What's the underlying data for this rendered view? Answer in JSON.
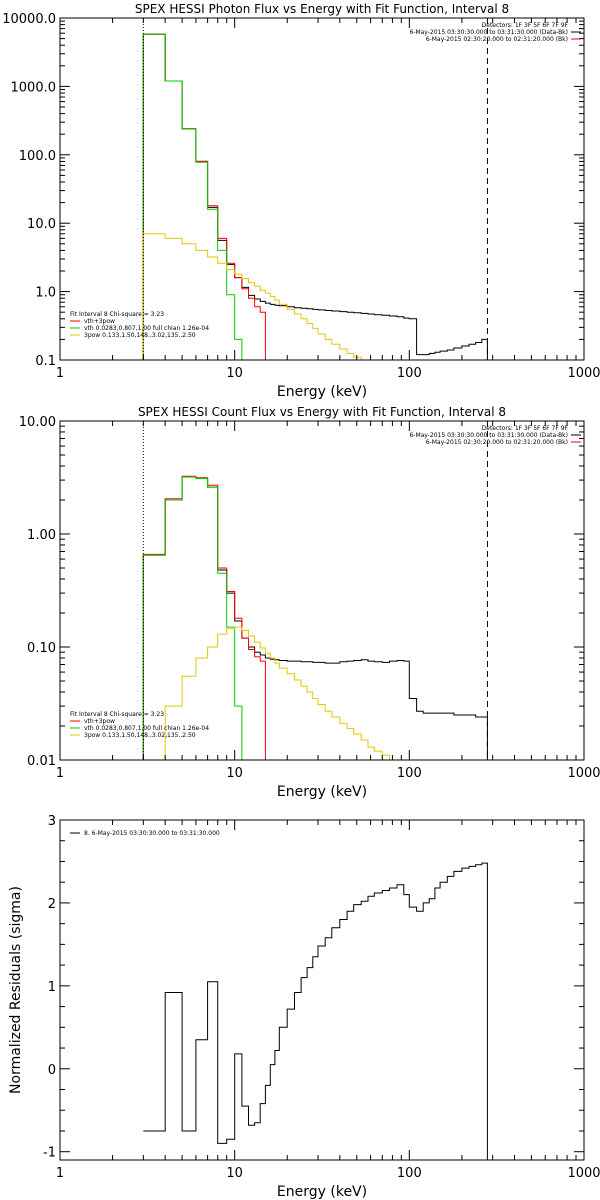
{
  "chart_data": [
    {
      "type": "line",
      "title": "SPEX HESSI Photon Flux vs Energy with Fit Function, Interval 8",
      "xlabel": "Energy (keV)",
      "ylabel": "",
      "xscale": "log",
      "yscale": "log",
      "xlim": [
        1,
        1000
      ],
      "ylim": [
        0.1,
        10000
      ],
      "x_ticks": [
        "1",
        "10",
        "100",
        "1000"
      ],
      "y_ticks": [
        "0.1",
        "1.0",
        "10.0",
        "100.0",
        "1000.0",
        "10000.0"
      ],
      "vlines": {
        "dotted": 3.0,
        "dashed": 280
      },
      "header_lines": [
        "Detectors: 1F 3F 5F 6F 7F 9F",
        "6-May-2015 03:30:30.000 to 03:31:30.000 (Data-Bk)",
        "6-May-2015 02:30:20.000 to 02:31:20.000 (Bk)"
      ],
      "header_colors": [
        "#000000",
        "#000000",
        "#ff0000"
      ],
      "legend_lines": [
        "Fit Interval 8   Chi-square = 3.23",
        "vth+3pow",
        "vth 0.0283,0.807,1.00  full chian 1.26e-04",
        "3pow 0.133,1.50,148.,3.02,135.,2.50"
      ],
      "legend_colors": [
        "#000000",
        "#ff0000",
        "#00cc00",
        "#e6c700"
      ],
      "series": [
        {
          "color": "#000000",
          "edges": [
            3,
            4,
            5,
            6,
            7,
            8,
            9,
            10,
            11,
            12,
            13,
            14,
            15,
            16,
            17,
            18,
            20,
            22,
            24,
            26,
            28,
            30,
            33,
            36,
            40,
            44,
            48,
            53,
            58,
            63,
            70,
            77,
            85,
            93,
            100,
            110,
            120,
            130,
            140,
            150,
            165,
            180,
            200,
            220,
            240,
            260,
            280
          ],
          "values": [
            5800,
            1200,
            240,
            80,
            17,
            5.6,
            2.5,
            1.6,
            1.15,
            0.88,
            0.78,
            0.72,
            0.68,
            0.65,
            0.63,
            0.62,
            0.6,
            0.58,
            0.57,
            0.56,
            0.55,
            0.54,
            0.53,
            0.52,
            0.51,
            0.5,
            0.49,
            0.48,
            0.47,
            0.46,
            0.45,
            0.44,
            0.43,
            0.41,
            0.4,
            0.12,
            0.12,
            0.125,
            0.13,
            0.135,
            0.14,
            0.15,
            0.16,
            0.17,
            0.18,
            0.2
          ]
        },
        {
          "color": "#ff0000",
          "edges": [
            3,
            4,
            5,
            6,
            7,
            8,
            9,
            10,
            11,
            12,
            13,
            14,
            15
          ],
          "values": [
            5800,
            1200,
            240,
            80,
            18,
            6,
            2.6,
            1.6,
            1.1,
            0.8,
            0.6,
            0.5
          ]
        },
        {
          "color": "#00cc00",
          "edges": [
            3,
            4,
            5,
            6,
            7,
            8,
            9,
            10,
            11,
            12
          ],
          "values": [
            5800,
            1200,
            240,
            78,
            16,
            4,
            0.9,
            0.2,
            0.05
          ]
        },
        {
          "color": "#e6c700",
          "edges": [
            3,
            4,
            5,
            6,
            7,
            8,
            9,
            10,
            11,
            12,
            13,
            14,
            15,
            16,
            17,
            18,
            20,
            22,
            24,
            26,
            28,
            30,
            33,
            36,
            40,
            44,
            48,
            53,
            58,
            63,
            70
          ],
          "values": [
            7,
            6,
            5,
            4,
            3.2,
            2.6,
            2.1,
            1.8,
            1.55,
            1.35,
            1.2,
            1.05,
            0.95,
            0.85,
            0.75,
            0.65,
            0.55,
            0.47,
            0.4,
            0.34,
            0.29,
            0.24,
            0.2,
            0.17,
            0.145,
            0.125,
            0.11,
            0.1,
            0.09,
            0.085
          ]
        }
      ]
    },
    {
      "type": "line",
      "title": "SPEX HESSI Count Flux vs Energy with Fit Function, Interval 8",
      "xlabel": "Energy (keV)",
      "ylabel": "",
      "xscale": "log",
      "yscale": "log",
      "xlim": [
        1,
        1000
      ],
      "ylim": [
        0.01,
        10
      ],
      "x_ticks": [
        "1",
        "10",
        "100",
        "1000"
      ],
      "y_ticks": [
        "0.01",
        "0.10",
        "1.00",
        "10.00"
      ],
      "vlines": {
        "dotted": 3.0,
        "dashed": 280
      },
      "header_lines": [
        "Detectors: 1F 3F 5F 6F 7F 9F",
        "6-May-2015 03:30:30.000 to 03:31:30.000 (Data-Bk)",
        "6-May-2015 02:30:20.000 to 02:31:20.000 (Bk)"
      ],
      "header_colors": [
        "#000000",
        "#000000",
        "#ff0000"
      ],
      "legend_lines": [
        "Fit Interval 8   Chi-square = 3.23",
        "vth+3pow",
        "vth 0.0283,0.807,1.00  full chian 1.26e-04",
        "3pow 0.133,1.50,148.,3.02,135.,2.50"
      ],
      "legend_colors": [
        "#000000",
        "#ff0000",
        "#00cc00",
        "#e6c700"
      ],
      "series": [
        {
          "color": "#000000",
          "edges": [
            3,
            4,
            5,
            6,
            7,
            8,
            9,
            10,
            11,
            12,
            13,
            14,
            15,
            16,
            17,
            18,
            20,
            22,
            24,
            26,
            28,
            30,
            33,
            36,
            40,
            44,
            48,
            53,
            58,
            63,
            70,
            77,
            85,
            93,
            100,
            110,
            120,
            140,
            160,
            180,
            200,
            220,
            240,
            260,
            280
          ],
          "values": [
            0.65,
            2.0,
            3.2,
            3.1,
            2.6,
            0.48,
            0.3,
            0.17,
            0.12,
            0.1,
            0.09,
            0.085,
            0.08,
            0.078,
            0.077,
            0.076,
            0.075,
            0.075,
            0.074,
            0.074,
            0.073,
            0.073,
            0.072,
            0.072,
            0.074,
            0.075,
            0.076,
            0.077,
            0.075,
            0.074,
            0.073,
            0.075,
            0.076,
            0.075,
            0.035,
            0.027,
            0.026,
            0.026,
            0.026,
            0.025,
            0.025,
            0.025,
            0.024,
            0.024
          ]
        },
        {
          "color": "#ff0000",
          "edges": [
            3,
            4,
            5,
            6,
            7,
            8,
            9,
            10,
            11,
            12,
            13,
            14,
            15
          ],
          "values": [
            0.66,
            2.05,
            3.25,
            3.15,
            2.7,
            0.5,
            0.31,
            0.18,
            0.12,
            0.095,
            0.082,
            0.075
          ]
        },
        {
          "color": "#00cc00",
          "edges": [
            3,
            4,
            5,
            6,
            7,
            8,
            9,
            10,
            11,
            12
          ],
          "values": [
            0.65,
            2.0,
            3.2,
            3.1,
            2.6,
            0.45,
            0.15,
            0.03,
            0.005
          ]
        },
        {
          "color": "#e6c700",
          "edges": [
            3,
            4,
            5,
            6,
            7,
            8,
            9,
            10,
            11,
            12,
            13,
            14,
            15,
            16,
            17,
            18,
            20,
            22,
            24,
            26,
            28,
            30,
            33,
            36,
            40,
            44,
            48,
            53,
            58,
            63,
            70,
            77,
            85,
            93,
            100
          ],
          "values": [
            0.008,
            0.03,
            0.055,
            0.08,
            0.1,
            0.13,
            0.145,
            0.15,
            0.14,
            0.125,
            0.11,
            0.098,
            0.088,
            0.08,
            0.072,
            0.065,
            0.058,
            0.051,
            0.045,
            0.04,
            0.035,
            0.031,
            0.027,
            0.024,
            0.021,
            0.019,
            0.017,
            0.015,
            0.013,
            0.012,
            0.011,
            0.01,
            0.009,
            0.008
          ]
        }
      ]
    },
    {
      "type": "line",
      "title": "",
      "xlabel": "Energy (keV)",
      "ylabel": "Normalized Residuals (sigma)",
      "xscale": "log",
      "yscale": "linear",
      "xlim": [
        1,
        1000
      ],
      "ylim": [
        -1.1,
        3
      ],
      "x_ticks": [
        "1",
        "10",
        "100",
        "1000"
      ],
      "y_ticks": [
        "-1",
        "0",
        "1",
        "2",
        "3"
      ],
      "legend_lines": [
        "8.  6-May-2015 03:30:30.000 to 03:31:30.000"
      ],
      "legend_colors": [
        "#000000"
      ],
      "series": [
        {
          "color": "#000000",
          "edges": [
            3,
            4,
            5,
            6,
            7,
            8,
            9,
            10,
            11,
            12,
            13,
            14,
            15,
            16,
            17,
            18,
            20,
            22,
            24,
            26,
            28,
            30,
            33,
            36,
            40,
            44,
            48,
            53,
            58,
            63,
            70,
            77,
            85,
            93,
            100,
            110,
            120,
            130,
            140,
            150,
            165,
            180,
            200,
            220,
            240,
            260,
            280
          ],
          "values": [
            -0.75,
            0.92,
            -0.75,
            0.35,
            1.05,
            -0.9,
            -0.85,
            0.18,
            -0.45,
            -0.68,
            -0.65,
            -0.42,
            -0.2,
            0.05,
            0.22,
            0.5,
            0.72,
            0.92,
            1.1,
            1.22,
            1.35,
            1.48,
            1.58,
            1.7,
            1.8,
            1.9,
            1.98,
            2.02,
            2.08,
            2.12,
            2.15,
            2.18,
            2.22,
            2.1,
            1.95,
            1.9,
            2.0,
            2.05,
            2.18,
            2.25,
            2.32,
            2.38,
            2.42,
            2.44,
            2.46,
            2.48
          ]
        }
      ]
    }
  ]
}
